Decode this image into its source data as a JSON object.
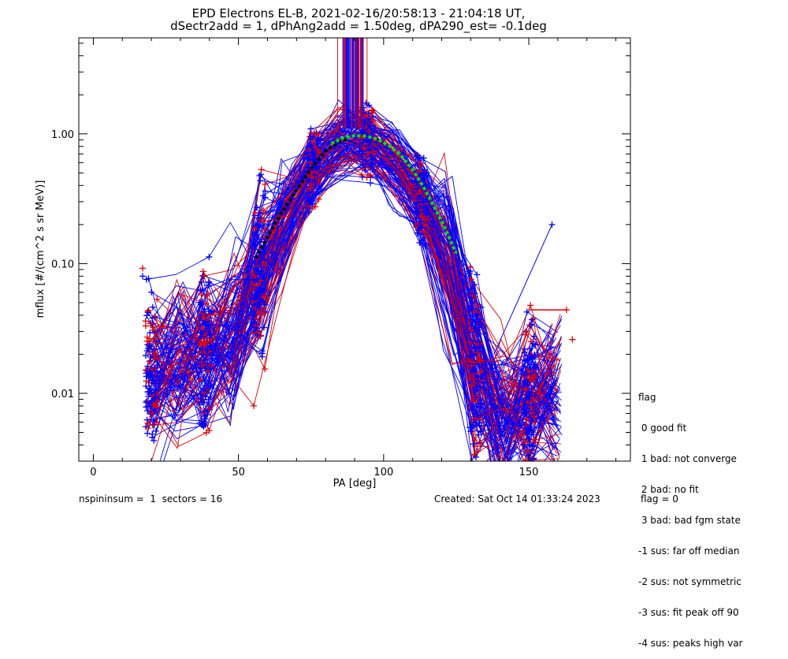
{
  "chart_data": {
    "type": "line",
    "title_line1": "EPD Electrons EL-B, 2021-02-16/20:58:13 - 21:04:18 UT,",
    "title_line2": "dSectr2add = 1, dPhAng2add = 1.50deg, dPA290_est=  -0.1deg",
    "xlabel": "PA [deg]",
    "ylabel": "mflux [#/(cm^2 s sr MeV)]",
    "xlim": [
      -5,
      185
    ],
    "ylim": [
      0.003,
      5.5
    ],
    "yscale": "log",
    "x_ticks": [
      0,
      50,
      100,
      150
    ],
    "x_tick_labels": [
      "0",
      "50",
      "100",
      "150"
    ],
    "y_ticks": [
      0.01,
      0.1,
      1.0
    ],
    "y_tick_labels": [
      "0.01",
      "0.10",
      "1.00"
    ],
    "series_colors": {
      "sweeps_red": "#e00000",
      "sweeps_blue": "#0000ff",
      "fit_black": "#000000",
      "fit_green": "#00e000"
    },
    "profile": {
      "x": [
        18,
        25,
        35,
        45,
        55,
        60,
        65,
        70,
        75,
        80,
        85,
        90,
        95,
        100,
        105,
        110,
        115,
        120,
        125,
        130,
        135,
        140,
        150,
        160
      ],
      "y": [
        0.013,
        0.016,
        0.019,
        0.022,
        0.06,
        0.12,
        0.2,
        0.33,
        0.52,
        0.75,
        0.86,
        0.9,
        0.88,
        0.75,
        0.55,
        0.4,
        0.27,
        0.17,
        0.07,
        0.018,
        0.009,
        0.006,
        0.01,
        0.012
      ]
    },
    "fit_black": {
      "x": [
        56,
        60,
        65,
        70,
        75,
        80,
        85,
        88
      ],
      "y": [
        0.11,
        0.16,
        0.25,
        0.37,
        0.54,
        0.74,
        0.88,
        0.93
      ]
    },
    "fit_green": {
      "x": [
        82,
        86,
        90,
        94,
        98,
        102,
        106,
        110,
        114,
        118,
        122,
        125
      ],
      "y": [
        0.84,
        0.93,
        0.97,
        0.96,
        0.91,
        0.81,
        0.68,
        0.53,
        0.38,
        0.26,
        0.17,
        0.12
      ]
    },
    "outliers": [
      {
        "x": 17,
        "y": 0.092,
        "color": "red"
      },
      {
        "x": 17,
        "y": 0.08,
        "color": "blue"
      },
      {
        "x": 158,
        "y": 0.2,
        "color": "blue"
      },
      {
        "x": 163,
        "y": 0.044,
        "color": "red"
      },
      {
        "x": 165,
        "y": 0.026,
        "color": "red"
      }
    ]
  },
  "legend": {
    "title": "flag",
    "items": [
      " 0 good fit",
      " 1 bad: not converge",
      " 2 bad: no fit",
      " 3 bad: bad fgm state",
      "-1 sus: far off median",
      "-2 sus: not symmetric",
      "-3 sus: fit peak off 90",
      "-4 sus: peaks high var"
    ]
  },
  "footer": {
    "left": "nspininsum =  1  sectors = 16",
    "created": "Created: Sat Oct 14 01:33:24 2023",
    "flag": "flag = 0"
  }
}
